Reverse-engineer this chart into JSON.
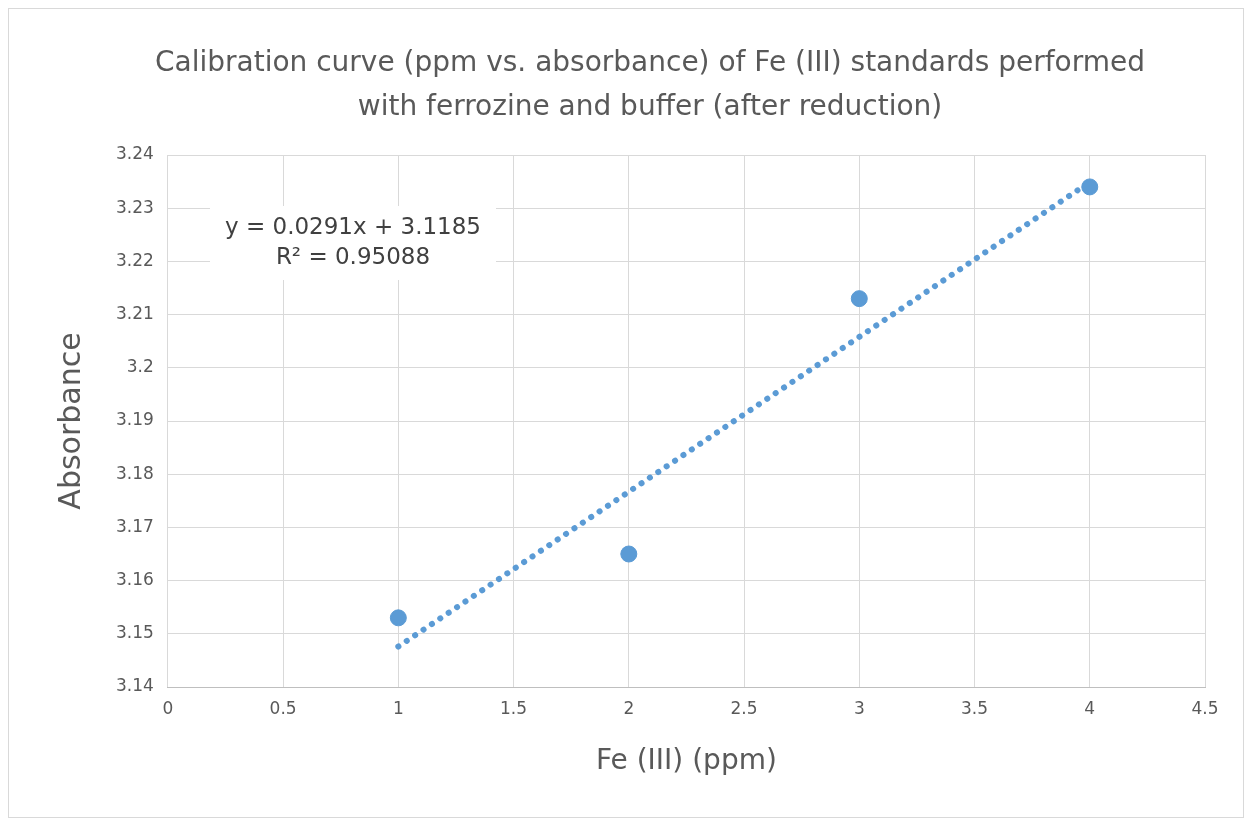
{
  "chart_data": {
    "type": "scatter",
    "title": "Calibration curve (ppm vs. absorbance) of Fe (III) standards performed with ferrozine and buffer (after reduction)",
    "xlabel": "Fe (III) (ppm)",
    "ylabel": "Absorbance",
    "series": [
      {
        "color": "#5b9bd5",
        "x": [
          1,
          2,
          3,
          4
        ],
        "values": [
          3.153,
          3.165,
          3.213,
          3.234
        ],
        "marker": "circle"
      },
      {
        "type": "line",
        "color": "#5b9bd5",
        "x": [
          1,
          4
        ],
        "values": [
          3.1476,
          3.2349
        ],
        "marker": "none",
        "line_style": "dotted"
      }
    ],
    "xlim": [
      0,
      4.5
    ],
    "xticks": [
      0,
      0.5,
      1,
      1.5,
      2,
      2.5,
      3,
      3.5,
      4,
      4.5
    ],
    "ylim": [
      3.14,
      3.24
    ],
    "yticks": [
      3.14,
      3.15,
      3.16,
      3.17,
      3.18,
      3.19,
      3.2,
      3.21,
      3.22,
      3.23,
      3.24
    ],
    "grid": true,
    "legend": false,
    "annotations": [
      "y = 0.0291x + 3.1185",
      "R² = 0.95088"
    ]
  }
}
